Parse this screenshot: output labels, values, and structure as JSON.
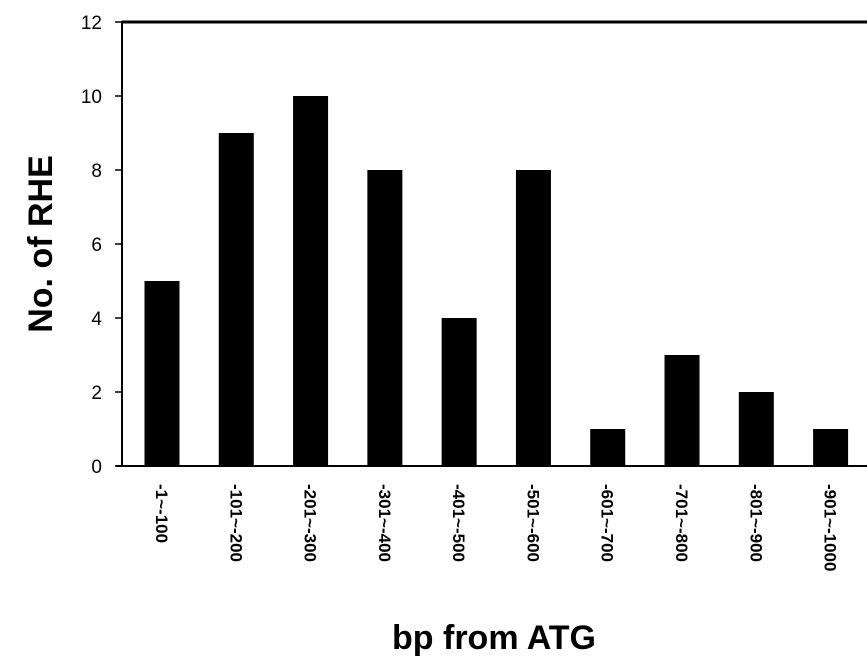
{
  "chart_data": {
    "type": "bar",
    "title": "",
    "xlabel": "bp from ATG",
    "ylabel": "No. of RHE",
    "categories": [
      "-1~-100",
      "-101~-200",
      "-201~-300",
      "-301~-400",
      "-401~-500",
      "-501~-600",
      "-601~-700",
      "-701~-800",
      "-801~-900",
      "-901~-1000"
    ],
    "values": [
      5,
      9,
      10,
      8,
      4,
      8,
      1,
      3,
      2,
      1
    ],
    "ylim": [
      0,
      12
    ],
    "yticks": [
      "0",
      "2",
      "4",
      "6",
      "8",
      "10",
      "12"
    ],
    "grid": false,
    "bar_color": "#000000"
  }
}
